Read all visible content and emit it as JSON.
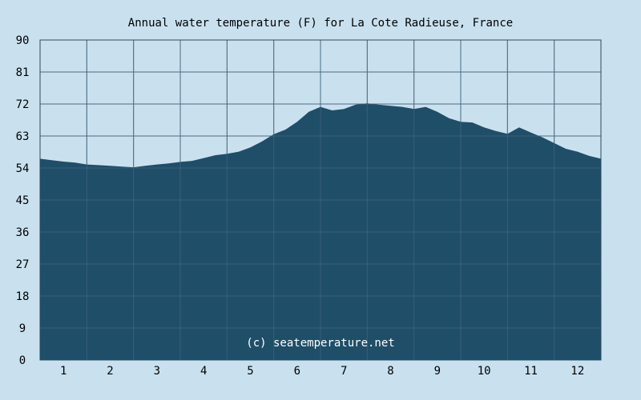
{
  "page": {
    "background": "#c9e1ef"
  },
  "chart_data": {
    "type": "area",
    "title": "Annual water temperature (F) for La Cote Radieuse, France",
    "watermark": "(c) seatemperature.net",
    "xlabel": "",
    "ylabel": "",
    "x_tick_labels": [
      "1",
      "2",
      "3",
      "4",
      "5",
      "6",
      "7",
      "8",
      "9",
      "10",
      "11",
      "12"
    ],
    "y_ticks": [
      0,
      9,
      18,
      27,
      36,
      45,
      54,
      63,
      72,
      81,
      90
    ],
    "xlim": [
      0.5,
      12.5
    ],
    "ylim": [
      0,
      90
    ],
    "grid": true,
    "legend": "none",
    "colors": {
      "fill": "#1f4e68",
      "grid": "#4d6e84",
      "axis": "#2a4a5e",
      "text": "#000000",
      "watermark": "#ffffff"
    },
    "series": [
      {
        "x": [
          0.5,
          0.75,
          1.0,
          1.25,
          1.5,
          1.75,
          2.0,
          2.25,
          2.5,
          2.75,
          3.0,
          3.25,
          3.5,
          3.75,
          4.0,
          4.25,
          4.5,
          4.75,
          5.0,
          5.25,
          5.5,
          5.75,
          6.0,
          6.25,
          6.5,
          6.75,
          7.0,
          7.25,
          7.5,
          7.75,
          8.0,
          8.25,
          8.5,
          8.75,
          9.0,
          9.25,
          9.5,
          9.75,
          10.0,
          10.25,
          10.5,
          10.75,
          11.0,
          11.25,
          11.5,
          11.75,
          12.0,
          12.25,
          12.5
        ],
        "values": [
          56.6,
          56.2,
          55.8,
          55.5,
          55.0,
          54.8,
          54.6,
          54.4,
          54.2,
          54.6,
          55.0,
          55.3,
          55.7,
          56.0,
          56.8,
          57.6,
          58.0,
          58.6,
          59.8,
          61.5,
          63.5,
          64.8,
          67.0,
          69.8,
          71.2,
          70.2,
          70.6,
          71.8,
          72.2,
          71.8,
          71.5,
          71.2,
          70.6,
          71.2,
          69.8,
          68.0,
          67.0,
          66.8,
          65.4,
          64.4,
          63.6,
          65.4,
          64.0,
          62.6,
          61.0,
          59.4,
          58.6,
          57.4,
          56.6
        ]
      }
    ]
  }
}
